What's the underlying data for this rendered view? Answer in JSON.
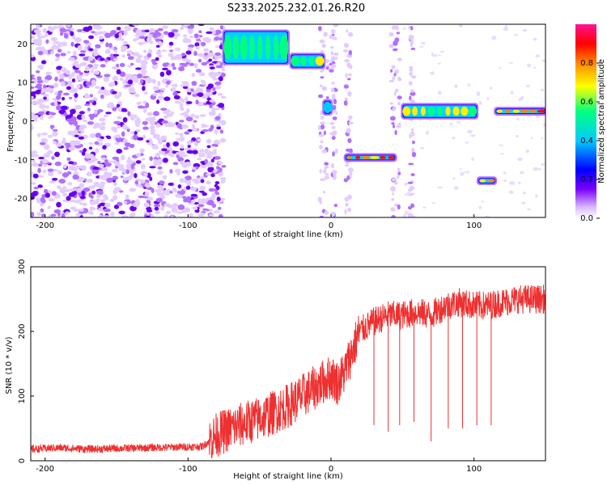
{
  "title": "S233.2025.232.01.26.R20",
  "colors": {
    "axis": "#000000",
    "snr_line": "#ee3030",
    "noise": "#9b30ff",
    "colormap": [
      "#ffffff",
      "#d8b4ff",
      "#7a00ff",
      "#0000ff",
      "#00ccff",
      "#00ff80",
      "#ffff00",
      "#ff8800",
      "#ff0000",
      "#ff1493"
    ]
  },
  "chart_data": [
    {
      "type": "heatmap",
      "xlabel": "Height of straight line (km)",
      "ylabel": "Frequency (Hz)",
      "xlim": [
        -210,
        150
      ],
      "ylim": [
        -25,
        25
      ],
      "xticks": [
        -200,
        -100,
        0,
        100
      ],
      "yticks": [
        -20,
        -10,
        0,
        10,
        20
      ],
      "colorbar": {
        "label": "Normalized spectral amplitude",
        "range": [
          0.0,
          1.0
        ],
        "ticks": [
          "0.0",
          "0.2",
          "0.4",
          "0.6",
          "0.8"
        ]
      },
      "features": [
        {
          "x_range": [
            -75,
            -30
          ],
          "freq_range": [
            15,
            23
          ],
          "amplitude": 0.6
        },
        {
          "x_range": [
            -28,
            -5
          ],
          "freq_range": [
            14,
            17
          ],
          "amplitude": 0.7
        },
        {
          "x_range": [
            -5,
            0
          ],
          "freq_range": [
            2,
            5
          ],
          "amplitude": 0.5
        },
        {
          "x_range": [
            10,
            45
          ],
          "freq_range": [
            -10,
            -9
          ],
          "amplitude": 0.9
        },
        {
          "x_range": [
            50,
            102
          ],
          "freq_range": [
            1,
            4
          ],
          "amplitude": 0.7
        },
        {
          "x_range": [
            103,
            115
          ],
          "freq_range": [
            -16,
            -15
          ],
          "amplitude": 0.9
        },
        {
          "x_range": [
            115,
            150
          ],
          "freq_range": [
            2,
            3
          ],
          "amplitude": 0.9
        }
      ]
    },
    {
      "type": "line",
      "xlabel": "Height of straight line (km)",
      "ylabel": "SNR (10 * v/v)",
      "xlim": [
        -210,
        150
      ],
      "ylim": [
        0,
        300
      ],
      "xticks": [
        -200,
        -100,
        0,
        100
      ],
      "yticks": [
        0,
        100,
        200,
        300
      ],
      "series": [
        {
          "x": [
            -210,
            -190,
            -170,
            -150,
            -130,
            -110,
            -90,
            -80,
            -70,
            -60,
            -50,
            -40,
            -30,
            -20,
            -10,
            0,
            5,
            10,
            15,
            20,
            30,
            40,
            50,
            60,
            70,
            80,
            90,
            100,
            110,
            120,
            130,
            140,
            150
          ],
          "values": [
            18,
            20,
            18,
            19,
            20,
            21,
            22,
            40,
            50,
            58,
            65,
            75,
            85,
            100,
            115,
            130,
            120,
            140,
            170,
            200,
            215,
            225,
            225,
            230,
            225,
            240,
            245,
            240,
            240,
            245,
            250,
            250,
            250
          ]
        }
      ]
    }
  ]
}
